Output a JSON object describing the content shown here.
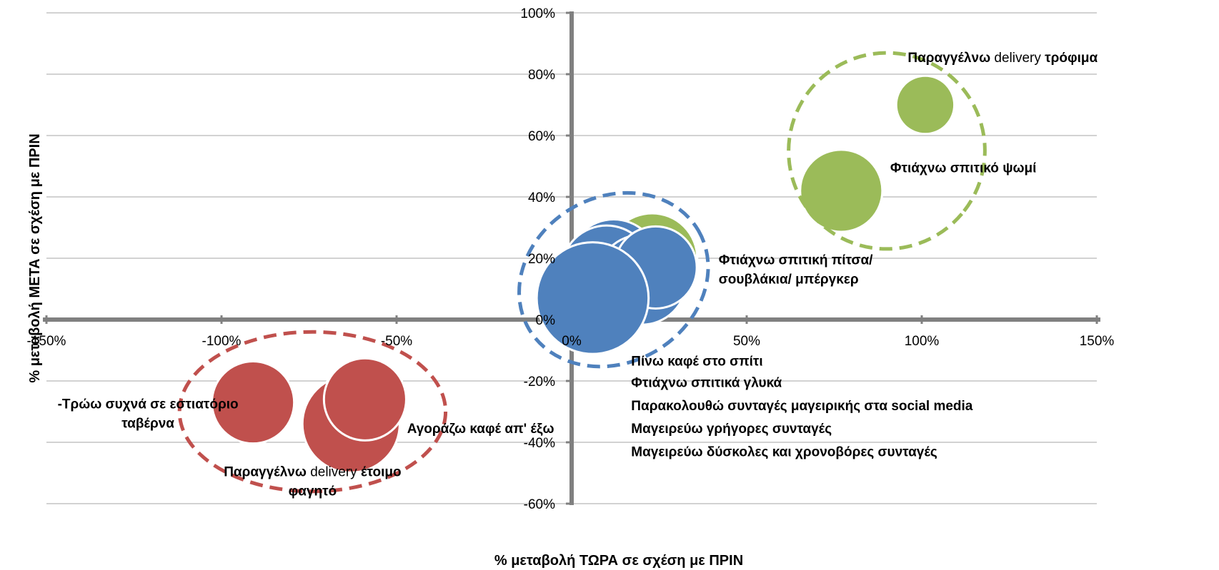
{
  "chart_data": {
    "type": "scatter",
    "variant": "bubble",
    "xlabel": "% μεταβολή ΤΩΡΑ σε σχέση με ΠΡΙΝ",
    "ylabel": "% μεταβολή ΜΕΤΑ σε σχέση με ΠΡΙΝ",
    "xlim": [
      -150,
      150
    ],
    "ylim": [
      -60,
      100
    ],
    "x_tick_labels": [
      "-150%",
      "-100%",
      "-50%",
      "0%",
      "50%",
      "100%",
      "150%"
    ],
    "y_tick_labels": [
      "100%",
      "80%",
      "60%",
      "40%",
      "20%",
      "0%",
      "-20%",
      "-40%",
      "-60%"
    ],
    "grid": "horizontal",
    "colors": {
      "red": "#c0504d",
      "blue": "#4f81bd",
      "green": "#9bbb59",
      "axis": "#808080",
      "grid": "#a6a6a6"
    },
    "bubbles": [
      {
        "x": 101,
        "y": 70,
        "size": 20,
        "color": "green"
      },
      {
        "x": 77,
        "y": 42,
        "size": 40,
        "color": "green"
      },
      {
        "x": 23,
        "y": 20,
        "size": 48,
        "color": "green"
      },
      {
        "x": 12,
        "y": 18,
        "size": 48,
        "color": "blue"
      },
      {
        "x": 10,
        "y": 16,
        "size": 48,
        "color": "blue"
      },
      {
        "x": 20,
        "y": 13,
        "size": 48,
        "color": "blue"
      },
      {
        "x": 24,
        "y": 17,
        "size": 40,
        "color": "blue"
      },
      {
        "x": 6,
        "y": 7,
        "size": 74,
        "color": "blue"
      },
      {
        "x": -91,
        "y": -27,
        "size": 40,
        "color": "red"
      },
      {
        "x": -63,
        "y": -34,
        "size": 56,
        "color": "red"
      },
      {
        "x": -59,
        "y": -26,
        "size": 40,
        "color": "red"
      }
    ],
    "clusters": [
      {
        "color": "red",
        "cx": -74,
        "cy": -30,
        "rx": 38,
        "ry": 26,
        "angle": 0
      },
      {
        "color": "blue",
        "cx": 12,
        "cy": 13,
        "rx": 28,
        "ry": 27,
        "angle": -30
      },
      {
        "color": "green",
        "cx": 90,
        "cy": 55,
        "rx": 28,
        "ry": 32,
        "angle": 40
      }
    ],
    "labels": [
      {
        "id": "lbl-delivery-food",
        "lines": [
          [
            {
              "t": "Παραγγέλνω ",
              "b": true
            },
            {
              "t": "delivery",
              "b": false
            },
            {
              "t": " τρόφιμα",
              "b": true
            }
          ]
        ],
        "x": 96,
        "y": 84,
        "anchor": "start"
      },
      {
        "id": "lbl-bread",
        "lines": [
          [
            {
              "t": "Φτιάχνω σπιτικό ψωμί",
              "b": true
            }
          ]
        ],
        "x": 91,
        "y": 48,
        "anchor": "start"
      },
      {
        "id": "lbl-pizza",
        "lines": [
          [
            {
              "t": "Φτιάχνω σπιτική πίτσα/",
              "b": true
            }
          ],
          [
            {
              "t": "σουβλάκια/ μπέργκερ",
              "b": true
            }
          ]
        ],
        "x": 42,
        "y": 18,
        "anchor": "start"
      },
      {
        "id": "lbl-coffee-home",
        "lines": [
          [
            {
              "t": "Πίνω καφέ στο σπίτι",
              "b": true
            }
          ]
        ],
        "x": 17,
        "y": -15,
        "anchor": "start"
      },
      {
        "id": "lbl-sweets",
        "lines": [
          [
            {
              "t": "Φτιάχνω σπιτικά γλυκά",
              "b": true
            }
          ]
        ],
        "x": 17,
        "y": -22,
        "anchor": "start"
      },
      {
        "id": "lbl-social",
        "lines": [
          [
            {
              "t": "Παρακολουθώ συνταγές μαγειρικής στα social media",
              "b": true
            }
          ]
        ],
        "x": 17,
        "y": -29.5,
        "anchor": "start"
      },
      {
        "id": "lbl-quick",
        "lines": [
          [
            {
              "t": "Μαγειρεύω γρήγορες συνταγές",
              "b": true
            }
          ]
        ],
        "x": 17,
        "y": -37,
        "anchor": "start"
      },
      {
        "id": "lbl-difficult",
        "lines": [
          [
            {
              "t": "Μαγειρεύω δύσκολες και χρονοβόρες συνταγές",
              "b": true
            }
          ]
        ],
        "x": 17,
        "y": -44.5,
        "anchor": "start"
      },
      {
        "id": "lbl-eat-out",
        "lines": [
          [
            {
              "t": "-Τρώω συχνά σε εστιατόριο",
              "b": true
            }
          ],
          [
            {
              "t": "ταβέρνα",
              "b": true
            }
          ]
        ],
        "x": -121,
        "y": -29,
        "anchor": "middle"
      },
      {
        "id": "lbl-coffee-out",
        "lines": [
          [
            {
              "t": "Αγοράζω καφέ απ' έξω",
              "b": true
            }
          ]
        ],
        "x": -47,
        "y": -37,
        "anchor": "start"
      },
      {
        "id": "lbl-delivery-ready",
        "lines": [
          [
            {
              "t": "Παραγγέλνω ",
              "b": true
            },
            {
              "t": "delivery",
              "b": false
            },
            {
              "t": " έτοιμο",
              "b": true
            }
          ],
          [
            {
              "t": "φαγητό",
              "b": true
            }
          ]
        ],
        "x": -74,
        "y": -51,
        "anchor": "middle"
      }
    ]
  }
}
